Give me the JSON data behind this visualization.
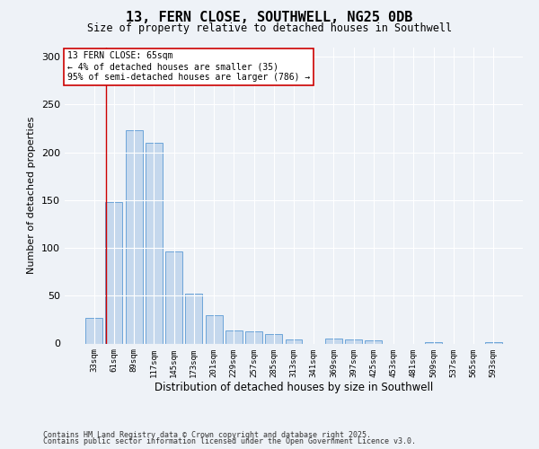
{
  "title": "13, FERN CLOSE, SOUTHWELL, NG25 0DB",
  "subtitle": "Size of property relative to detached houses in Southwell",
  "xlabel": "Distribution of detached houses by size in Southwell",
  "ylabel": "Number of detached properties",
  "categories": [
    "33sqm",
    "61sqm",
    "89sqm",
    "117sqm",
    "145sqm",
    "173sqm",
    "201sqm",
    "229sqm",
    "257sqm",
    "285sqm",
    "313sqm",
    "341sqm",
    "369sqm",
    "397sqm",
    "425sqm",
    "453sqm",
    "481sqm",
    "509sqm",
    "537sqm",
    "565sqm",
    "593sqm"
  ],
  "values": [
    27,
    148,
    223,
    210,
    96,
    52,
    30,
    14,
    13,
    10,
    4,
    0,
    5,
    4,
    3,
    0,
    0,
    1,
    0,
    0,
    1
  ],
  "bar_color": "#c5d8ed",
  "bar_edge_color": "#5b9bd5",
  "background_color": "#eef2f7",
  "annotation_box_text": "13 FERN CLOSE: 65sqm\n← 4% of detached houses are smaller (35)\n95% of semi-detached houses are larger (786) →",
  "annotation_box_color": "#ffffff",
  "annotation_box_edge_color": "#cc0000",
  "vline_color": "#cc0000",
  "vline_x": 0.62,
  "ylim": [
    0,
    310
  ],
  "yticks": [
    0,
    50,
    100,
    150,
    200,
    250,
    300
  ],
  "footer_line1": "Contains HM Land Registry data © Crown copyright and database right 2025.",
  "footer_line2": "Contains public sector information licensed under the Open Government Licence v3.0."
}
